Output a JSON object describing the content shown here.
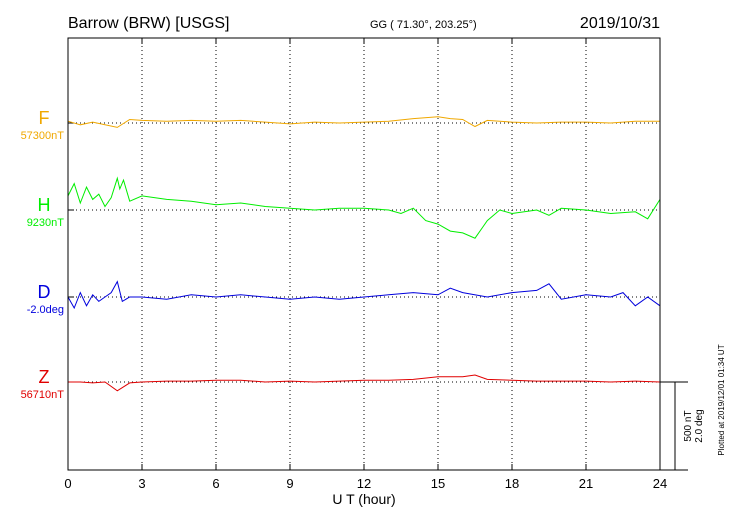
{
  "header": {
    "station": "Barrow (BRW)  [USGS]",
    "coords": "GG ( 71.30°, 203.25°)",
    "date": "2019/10/31"
  },
  "xaxis_label": "U T (hour)",
  "scale_note": [
    "500 nT",
    "2.0 deg"
  ],
  "plotted_note": "Plotted at 2019/12/01 01:34 UT",
  "chart_data": {
    "type": "line",
    "x_range": [
      0,
      24
    ],
    "x_ticks": [
      0,
      3,
      6,
      9,
      12,
      15,
      18,
      21,
      24
    ],
    "x_tick_labels": [
      "0",
      "3",
      "6",
      "9",
      "12",
      "15",
      "18",
      "21",
      "24"
    ],
    "xlabel": "U T (hour)",
    "grid_x": true,
    "scale_bar": {
      "nT": 500,
      "deg": 2.0
    },
    "series": [
      {
        "name": "F",
        "baseline_label": "57300nT",
        "color": "#f0a800",
        "unit": "nT",
        "x": [
          0,
          0.5,
          1,
          1.5,
          2,
          2.5,
          3,
          4,
          5,
          6,
          7,
          8,
          9,
          10,
          11,
          12,
          13,
          14,
          15,
          15.5,
          16,
          16.5,
          17,
          18,
          19,
          20,
          21,
          22,
          23,
          24
        ],
        "y": [
          10,
          -10,
          5,
          -10,
          -25,
          20,
          15,
          10,
          15,
          10,
          15,
          5,
          -5,
          5,
          0,
          5,
          10,
          25,
          35,
          25,
          20,
          -20,
          15,
          5,
          0,
          5,
          5,
          0,
          10,
          10
        ]
      },
      {
        "name": "H",
        "baseline_label": "9230nT",
        "color": "#00ee00",
        "unit": "nT",
        "x": [
          0,
          0.25,
          0.5,
          0.75,
          1,
          1.25,
          1.5,
          1.75,
          2,
          2.1,
          2.25,
          2.5,
          3,
          4,
          5,
          6,
          7,
          8,
          9,
          10,
          11,
          12,
          13,
          13.5,
          14,
          14.5,
          15,
          15.5,
          16,
          16.5,
          16.8,
          17,
          17.5,
          18,
          19,
          19.5,
          20,
          21,
          22,
          23,
          23.5,
          24
        ],
        "y": [
          80,
          150,
          40,
          130,
          60,
          90,
          20,
          70,
          180,
          120,
          170,
          50,
          80,
          60,
          50,
          30,
          40,
          20,
          10,
          0,
          10,
          10,
          0,
          -20,
          10,
          -60,
          -80,
          -120,
          -130,
          -160,
          -100,
          -60,
          0,
          -20,
          0,
          -30,
          10,
          0,
          -20,
          -10,
          -50,
          60
        ]
      },
      {
        "name": "D",
        "baseline_label": "-2.0deg",
        "color": "#0000dd",
        "unit": "deg",
        "x": [
          0,
          0.25,
          0.5,
          0.75,
          1,
          1.25,
          1.5,
          1.75,
          2,
          2.2,
          2.5,
          3,
          4,
          5,
          6,
          7,
          8,
          9,
          10,
          11,
          12,
          13,
          14,
          15,
          15.5,
          16,
          17,
          18,
          19,
          19.5,
          20,
          21,
          22,
          22.5,
          23,
          23.5,
          24
        ],
        "y": [
          0.0,
          -0.25,
          0.1,
          -0.2,
          0.05,
          -0.1,
          0.0,
          0.1,
          0.35,
          -0.1,
          0.0,
          0.0,
          -0.05,
          0.05,
          0.0,
          0.05,
          0.0,
          -0.05,
          0.0,
          -0.05,
          0.0,
          0.05,
          0.1,
          0.05,
          0.2,
          0.1,
          0.0,
          0.1,
          0.15,
          0.3,
          -0.05,
          0.05,
          0.0,
          0.1,
          -0.2,
          0.0,
          -0.2
        ]
      },
      {
        "name": "Z",
        "baseline_label": "56710nT",
        "color": "#e00000",
        "unit": "nT",
        "x": [
          0,
          0.5,
          1,
          1.5,
          2,
          2.5,
          3,
          4,
          5,
          6,
          7,
          8,
          9,
          10,
          11,
          12,
          13,
          14,
          15,
          16,
          16.5,
          17,
          18,
          19,
          20,
          21,
          22,
          23,
          24
        ],
        "y": [
          0,
          0,
          -5,
          0,
          -50,
          -5,
          0,
          5,
          5,
          10,
          10,
          0,
          5,
          0,
          5,
          10,
          10,
          15,
          30,
          30,
          40,
          15,
          10,
          5,
          5,
          5,
          0,
          5,
          0
        ]
      }
    ]
  }
}
